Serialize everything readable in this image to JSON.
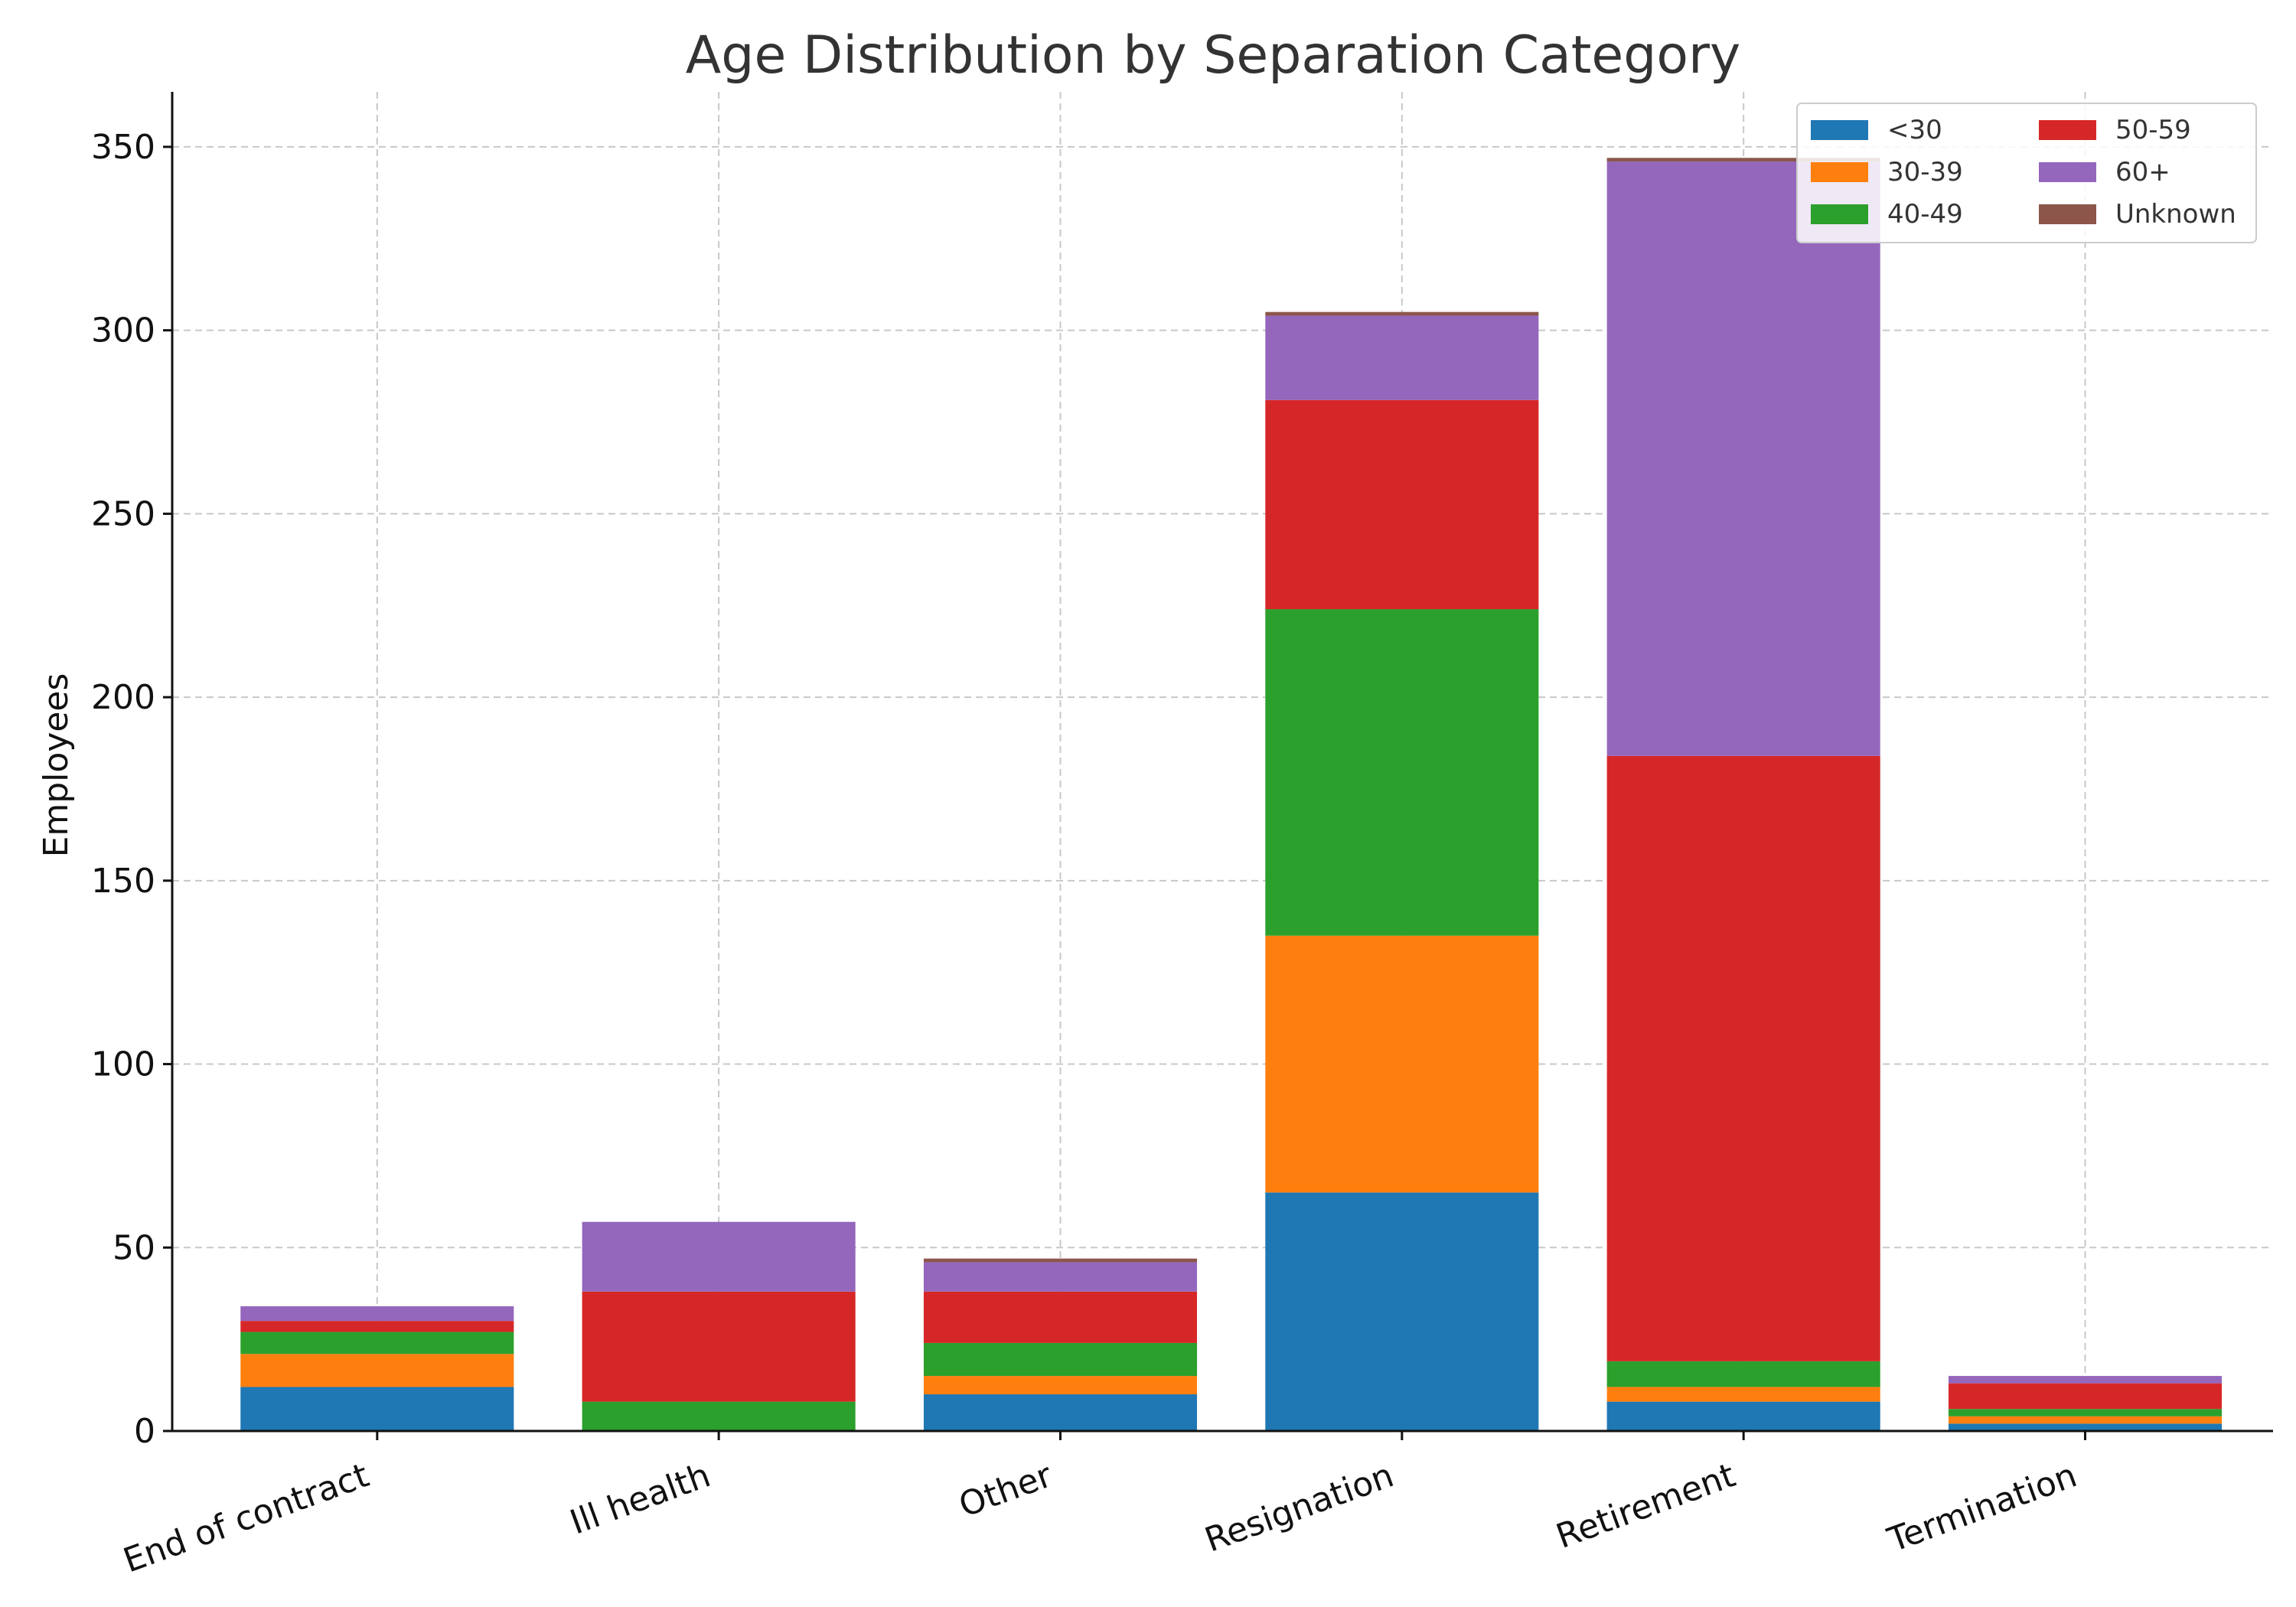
{
  "chart_data": {
    "type": "bar",
    "stacked": true,
    "title": "Age Distribution by Separation Category",
    "xlabel": "",
    "ylabel": "Employees",
    "categories": [
      "End of contract",
      "Ill health",
      "Other",
      "Resignation",
      "Retirement",
      "Termination"
    ],
    "yticks": [
      "0",
      "50",
      "100",
      "150",
      "200",
      "250",
      "300",
      "350"
    ],
    "ylim": [
      0,
      365
    ],
    "grid": true,
    "legend_position": "top-right",
    "series": [
      {
        "name": "<30",
        "color": "#1f77b4",
        "values": [
          12,
          0,
          10,
          65,
          8,
          2
        ]
      },
      {
        "name": "30-39",
        "color": "#ff7f0e",
        "values": [
          9,
          0,
          5,
          70,
          4,
          2
        ]
      },
      {
        "name": "40-49",
        "color": "#2ca02c",
        "values": [
          6,
          8,
          9,
          89,
          7,
          2
        ]
      },
      {
        "name": "50-59",
        "color": "#d62728",
        "values": [
          3,
          30,
          14,
          57,
          165,
          7
        ]
      },
      {
        "name": "60+",
        "color": "#9467bd",
        "values": [
          4,
          19,
          8,
          23,
          162,
          2
        ]
      },
      {
        "name": "Unknown",
        "color": "#8c564b",
        "values": [
          0,
          0,
          1,
          1,
          1,
          0
        ]
      }
    ]
  }
}
